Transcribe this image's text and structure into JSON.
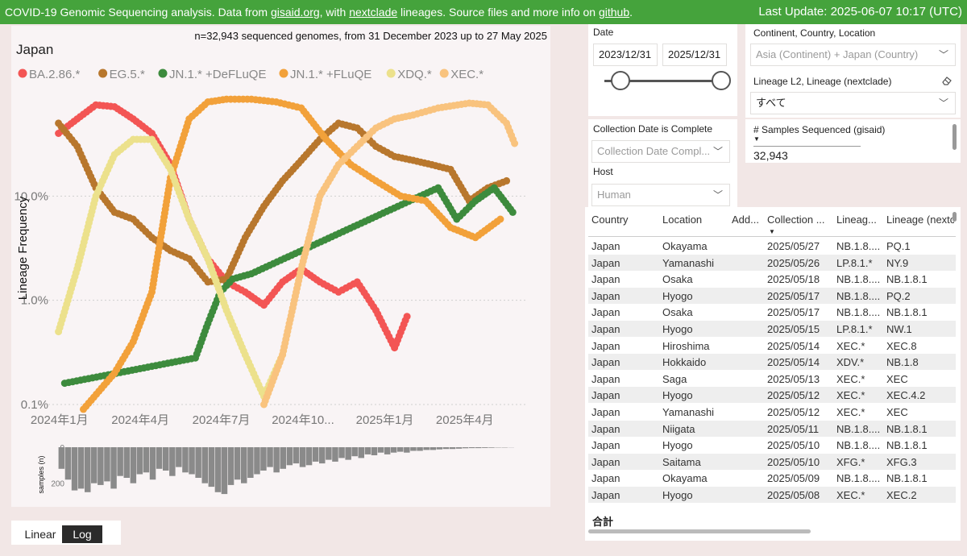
{
  "topbar": {
    "prefix": "COVID-19 Genomic Sequencing analysis. Data from ",
    "link1": "gisaid.org",
    "mid1": ", with ",
    "link2": "nextclade",
    "mid2": " lineages. Source files and more info on ",
    "link3": "github",
    "suffix": ".",
    "update": "Last Update: 2025-06-07 10:17 (UTC)"
  },
  "scale_toggle": {
    "linear": "Linear",
    "log": "Log",
    "selected": "Log"
  },
  "filters": {
    "date_label": "Date",
    "date_from": "2023/12/31",
    "date_to": "2025/12/31",
    "location_label": "Continent, Country, Location",
    "location_value": "Asia (Continent) + Japan (Country)",
    "lineage_label": "Lineage L2, Lineage (nextclade)",
    "lineage_value": "すべて",
    "complete_label": "Collection Date is Complete",
    "complete_value": "Collection Date Compl...",
    "host_label": "Host",
    "host_value": "Human",
    "samples_label": "# Samples Sequenced (gisaid)",
    "samples_value": "32,943"
  },
  "table": {
    "columns": [
      "Country",
      "Location",
      "Add...",
      "Collection ...",
      "Lineag...",
      "Lineage (nextc"
    ],
    "rows": [
      [
        "Japan",
        "Okayama",
        "",
        "2025/05/27",
        "NB.1.8....",
        "PQ.1"
      ],
      [
        "Japan",
        "Yamanashi",
        "",
        "2025/05/26",
        "LP.8.1.*",
        "NY.9"
      ],
      [
        "Japan",
        "Osaka",
        "",
        "2025/05/18",
        "NB.1.8....",
        "NB.1.8.1"
      ],
      [
        "Japan",
        "Hyogo",
        "",
        "2025/05/17",
        "NB.1.8....",
        "PQ.2"
      ],
      [
        "Japan",
        "Osaka",
        "",
        "2025/05/17",
        "NB.1.8....",
        "NB.1.8.1"
      ],
      [
        "Japan",
        "Hyogo",
        "",
        "2025/05/15",
        "LP.8.1.*",
        "NW.1"
      ],
      [
        "Japan",
        "Hiroshima",
        "",
        "2025/05/14",
        "XEC.*",
        "XEC.8"
      ],
      [
        "Japan",
        "Hokkaido",
        "",
        "2025/05/14",
        "XDV.*",
        "NB.1.8"
      ],
      [
        "Japan",
        "Saga",
        "",
        "2025/05/13",
        "XEC.*",
        "XEC"
      ],
      [
        "Japan",
        "Hyogo",
        "",
        "2025/05/12",
        "XEC.*",
        "XEC.4.2"
      ],
      [
        "Japan",
        "Yamanashi",
        "",
        "2025/05/12",
        "XEC.*",
        "XEC"
      ],
      [
        "Japan",
        "Niigata",
        "",
        "2025/05/11",
        "NB.1.8....",
        "NB.1.8.1"
      ],
      [
        "Japan",
        "Hyogo",
        "",
        "2025/05/10",
        "NB.1.8....",
        "NB.1.8.1"
      ],
      [
        "Japan",
        "Saitama",
        "",
        "2025/05/10",
        "XFG.*",
        "XFG.3"
      ],
      [
        "Japan",
        "Okayama",
        "",
        "2025/05/09",
        "NB.1.8....",
        "NB.1.8.1"
      ],
      [
        "Japan",
        "Hyogo",
        "",
        "2025/05/08",
        "XEC.*",
        "XEC.2"
      ]
    ],
    "total_label": "合計"
  },
  "chart_data": {
    "type": "line",
    "title": "Japan",
    "subtitle": "n=32,943 sequenced genomes, from 31 December 2023 up to 27 May 2025",
    "ylabel": "Lineage Frequency",
    "yscale": "log",
    "yticks": [
      {
        "value": 0.1,
        "label": "0.1%"
      },
      {
        "value": 1,
        "label": "1.0%"
      },
      {
        "value": 10,
        "label": "10.0%"
      }
    ],
    "xlim": [
      "2023-12-25",
      "2025-06-10"
    ],
    "xticks": [
      {
        "date": "2024-01-01",
        "label": "2024年1月"
      },
      {
        "date": "2024-04-01",
        "label": "2024年4月"
      },
      {
        "date": "2024-07-01",
        "label": "2024年7月"
      },
      {
        "date": "2024-10-01",
        "label": "2024年10..."
      },
      {
        "date": "2025-01-01",
        "label": "2025年1月"
      },
      {
        "date": "2025-04-01",
        "label": "2025年4月"
      }
    ],
    "legend_position": "top-left",
    "series": [
      {
        "name": "BA.2.86.*",
        "color": "#f35554",
        "points": [
          [
            "2023-12-31",
            40
          ],
          [
            "2024-01-21",
            55
          ],
          [
            "2024-02-11",
            75
          ],
          [
            "2024-03-03",
            72
          ],
          [
            "2024-03-24",
            55
          ],
          [
            "2024-04-14",
            40
          ],
          [
            "2024-05-05",
            20
          ],
          [
            "2024-05-26",
            6
          ],
          [
            "2024-06-16",
            2.5
          ],
          [
            "2024-07-07",
            1.5
          ],
          [
            "2024-07-28",
            1.2
          ],
          [
            "2024-08-18",
            0.9
          ],
          [
            "2024-09-08",
            1.5
          ],
          [
            "2024-09-29",
            2
          ],
          [
            "2024-10-20",
            1.5
          ],
          [
            "2024-11-10",
            1.2
          ],
          [
            "2024-12-01",
            1.5
          ],
          [
            "2024-12-22",
            0.8
          ],
          [
            "2025-01-12",
            0.35
          ],
          [
            "2025-01-26",
            0.7
          ]
        ]
      },
      {
        "name": "EG.5.*",
        "color": "#b8772d",
        "points": [
          [
            "2023-12-31",
            50
          ],
          [
            "2024-01-21",
            30
          ],
          [
            "2024-02-11",
            12
          ],
          [
            "2024-03-03",
            7
          ],
          [
            "2024-03-24",
            6
          ],
          [
            "2024-04-14",
            4
          ],
          [
            "2024-05-05",
            3
          ],
          [
            "2024-05-26",
            2.5
          ],
          [
            "2024-06-16",
            1.5
          ],
          [
            "2024-07-07",
            1.6
          ],
          [
            "2024-07-28",
            4
          ],
          [
            "2024-08-18",
            8
          ],
          [
            "2024-09-08",
            14
          ],
          [
            "2024-09-29",
            22
          ],
          [
            "2024-10-20",
            35
          ],
          [
            "2024-11-10",
            50
          ],
          [
            "2024-12-01",
            45
          ],
          [
            "2024-12-22",
            30
          ],
          [
            "2025-01-12",
            24
          ],
          [
            "2025-02-02",
            22
          ],
          [
            "2025-02-23",
            20
          ],
          [
            "2025-03-16",
            18
          ],
          [
            "2025-04-06",
            9
          ],
          [
            "2025-04-27",
            12
          ],
          [
            "2025-05-18",
            14
          ]
        ]
      },
      {
        "name": "JN.1.* +DeFLuQE",
        "color": "#3d8b3d",
        "points": [
          [
            "2024-01-07",
            0.16
          ],
          [
            "2024-06-02",
            0.28
          ],
          [
            "2024-06-16",
            0.6
          ],
          [
            "2024-06-30",
            1.2
          ],
          [
            "2024-07-14",
            1.6
          ],
          [
            "2024-08-04",
            1.8
          ],
          [
            "2025-03-02",
            12
          ],
          [
            "2025-03-23",
            6
          ],
          [
            "2025-04-13",
            9
          ],
          [
            "2025-05-04",
            12
          ],
          [
            "2025-05-25",
            7
          ]
        ]
      },
      {
        "name": "JN.1.* +FLuQE",
        "color": "#f2a13a",
        "points": [
          [
            "2024-01-28",
            0.09
          ],
          [
            "2024-03-03",
            0.2
          ],
          [
            "2024-03-24",
            0.4
          ],
          [
            "2024-04-14",
            1.2
          ],
          [
            "2024-05-05",
            15
          ],
          [
            "2024-05-26",
            55
          ],
          [
            "2024-06-16",
            80
          ],
          [
            "2024-07-07",
            85
          ],
          [
            "2024-08-04",
            85
          ],
          [
            "2024-09-01",
            80
          ],
          [
            "2024-09-29",
            70
          ],
          [
            "2024-10-27",
            35
          ],
          [
            "2024-11-24",
            20
          ],
          [
            "2024-12-22",
            14
          ],
          [
            "2025-01-19",
            10
          ],
          [
            "2025-02-16",
            9
          ],
          [
            "2025-03-16",
            5
          ],
          [
            "2025-04-13",
            4
          ],
          [
            "2025-05-11",
            6
          ]
        ]
      },
      {
        "name": "XDQ.*",
        "color": "#ece18c",
        "points": [
          [
            "2023-12-31",
            0.5
          ],
          [
            "2024-01-21",
            2
          ],
          [
            "2024-02-11",
            10
          ],
          [
            "2024-03-03",
            25
          ],
          [
            "2024-03-24",
            35
          ],
          [
            "2024-04-14",
            35
          ],
          [
            "2024-05-05",
            18
          ],
          [
            "2024-05-26",
            6
          ],
          [
            "2024-06-16",
            2.5
          ],
          [
            "2024-07-07",
            0.8
          ],
          [
            "2024-07-28",
            0.3
          ],
          [
            "2024-08-18",
            0.12
          ],
          [
            "2024-09-08",
            0.3
          ]
        ]
      },
      {
        "name": "XEC.*",
        "color": "#f9c37e",
        "points": [
          [
            "2024-08-18",
            0.1
          ],
          [
            "2024-09-08",
            0.3
          ],
          [
            "2024-09-29",
            2
          ],
          [
            "2024-10-20",
            10
          ],
          [
            "2024-11-10",
            20
          ],
          [
            "2024-12-01",
            30
          ],
          [
            "2024-12-22",
            45
          ],
          [
            "2025-01-12",
            55
          ],
          [
            "2025-02-02",
            60
          ],
          [
            "2025-03-02",
            70
          ],
          [
            "2025-04-06",
            78
          ],
          [
            "2025-04-27",
            75
          ],
          [
            "2025-05-18",
            50
          ],
          [
            "2025-05-27",
            32
          ]
        ]
      }
    ],
    "sample_histogram": {
      "ylabel": "samples (n)",
      "ticks": [
        0,
        200
      ],
      "max": 300,
      "weekly_samples": [
        120,
        180,
        240,
        230,
        250,
        200,
        210,
        190,
        230,
        160,
        170,
        200,
        150,
        140,
        180,
        120,
        130,
        160,
        110,
        140,
        150,
        170,
        200,
        220,
        250,
        260,
        210,
        180,
        200,
        170,
        150,
        130,
        110,
        140,
        120,
        100,
        90,
        110,
        100,
        80,
        90,
        70,
        80,
        60,
        70,
        50,
        60,
        40,
        45,
        30,
        40,
        30,
        25,
        30,
        20,
        20,
        15,
        15,
        12,
        10,
        10,
        8,
        6,
        5,
        5,
        4,
        3,
        2,
        2,
        1
      ]
    }
  }
}
